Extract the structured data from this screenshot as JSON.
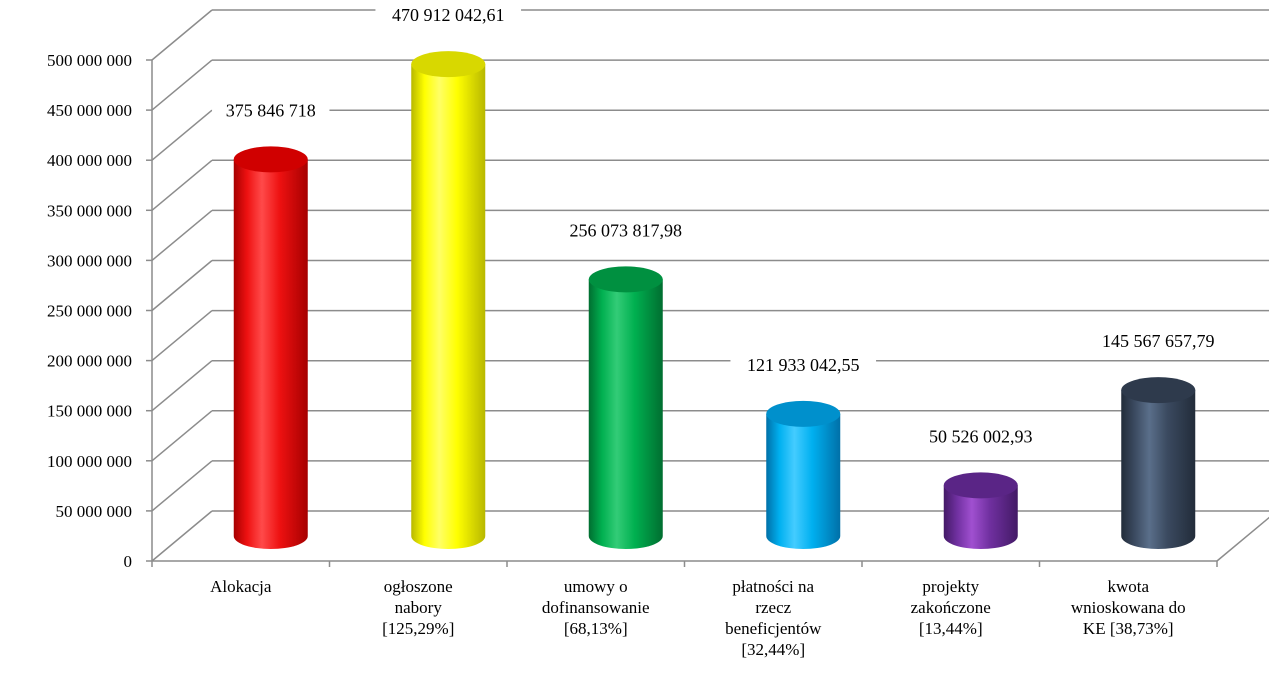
{
  "chart_data": {
    "type": "bar",
    "title": "",
    "xlabel": "",
    "ylabel": "",
    "ylim": [
      0,
      500000000
    ],
    "yticks": [
      0,
      50000000,
      100000000,
      150000000,
      200000000,
      250000000,
      300000000,
      350000000,
      400000000,
      450000000,
      500000000
    ],
    "ytick_labels": [
      "0",
      "50 000 000",
      "100 000 000",
      "150 000 000",
      "200 000 000",
      "250 000 000",
      "300 000 000",
      "350 000 000",
      "400 000 000",
      "450 000 000",
      "500 000 000"
    ],
    "grid": true,
    "style": "3d-cylinder",
    "categories": [
      [
        "Alokacja"
      ],
      [
        "ogłoszone",
        "nabory",
        "[125,29%]"
      ],
      [
        "umowy o",
        "dofinansowanie",
        "[68,13%]"
      ],
      [
        "płatności na",
        "rzecz",
        "beneficjentów",
        "[32,44%]"
      ],
      [
        "projekty",
        "zakończone",
        "[13,44%]"
      ],
      [
        "kwota",
        "wnioskowana do",
        "KE [38,73%]"
      ]
    ],
    "values": [
      375846718,
      470912042.61,
      256073817.98,
      121933042.55,
      50526002.93,
      145567657.79
    ],
    "data_labels": [
      "375 846 718",
      "470 912 042,61",
      "256 073 817,98",
      "121 933 042,55",
      "50 526 002,93",
      "145 567 657,79"
    ],
    "colors": [
      {
        "light": "#ff4a4a",
        "base": "#ee1111",
        "dark": "#a60000",
        "top": "#d00000"
      },
      {
        "light": "#ffff66",
        "base": "#ffff00",
        "dark": "#b8b800",
        "top": "#d8d800"
      },
      {
        "light": "#33cc77",
        "base": "#00b050",
        "dark": "#006e30",
        "top": "#009040"
      },
      {
        "light": "#44ccff",
        "base": "#00b0f0",
        "dark": "#0070a8",
        "top": "#0090cc"
      },
      {
        "light": "#a050d0",
        "base": "#7030a0",
        "dark": "#431a66",
        "top": "#5a2586"
      },
      {
        "light": "#5a6f8a",
        "base": "#3b4a60",
        "dark": "#222c3a",
        "top": "#2e3a4c"
      }
    ]
  }
}
